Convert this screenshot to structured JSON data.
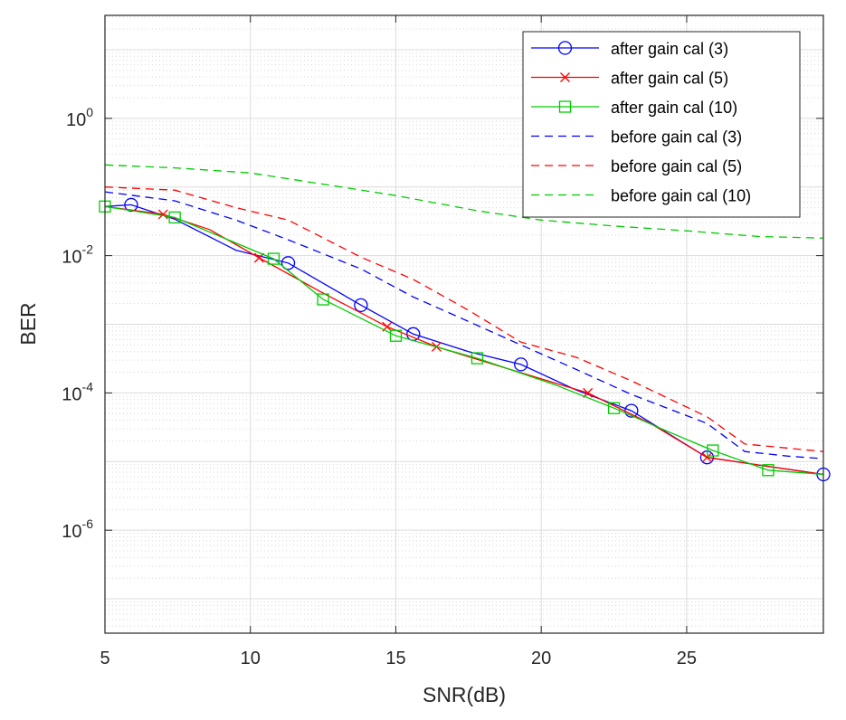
{
  "chart_data": {
    "type": "line",
    "title": "",
    "xlabel": "SNR(dB)",
    "ylabel": "BER",
    "xscale": "linear",
    "yscale": "log",
    "xlim": [
      5,
      29.7
    ],
    "ylim_exp": [
      -7.5,
      1.5
    ],
    "grid": true,
    "minor_grid": true,
    "legend_position": "top-right",
    "x_ticks": [
      {
        "value": 5,
        "label": "5"
      },
      {
        "value": 10,
        "label": "10"
      },
      {
        "value": 15,
        "label": "15"
      },
      {
        "value": 20,
        "label": "20"
      },
      {
        "value": 25,
        "label": "25"
      }
    ],
    "y_ticks": [
      {
        "exp": 0,
        "base": "10",
        "sup": "0"
      },
      {
        "exp": -2,
        "base": "10",
        "sup": "-2"
      },
      {
        "exp": -4,
        "base": "10",
        "sup": "-4"
      },
      {
        "exp": -6,
        "base": "10",
        "sup": "-6"
      }
    ],
    "series": [
      {
        "name": "after gain cal (3)",
        "color": "#0000ff",
        "line": "solid",
        "marker": "circle",
        "x": [
          5,
          5.9,
          7.4,
          9.5,
          11.3,
          13.8,
          15.6,
          17.5,
          19.3,
          21.2,
          23.1,
          25.7,
          27.8,
          29.7
        ],
        "y": [
          0.052,
          0.055,
          0.034,
          0.012,
          0.0078,
          0.0019,
          0.00072,
          0.0004,
          0.00026,
          0.00011,
          5.5e-05,
          1.15e-05,
          8.5e-06,
          6.5e-06
        ],
        "marker_x": [
          5.9,
          11.3,
          13.8,
          15.6,
          19.3,
          23.1,
          25.7,
          29.7
        ],
        "marker_y": [
          0.055,
          0.0078,
          0.0019,
          0.00072,
          0.00026,
          5.5e-05,
          1.15e-05,
          6.5e-06
        ]
      },
      {
        "name": "after gain cal (5)",
        "color": "#ff0000",
        "line": "solid",
        "marker": "x",
        "x": [
          5,
          7.0,
          8.6,
          10.3,
          12.4,
          14.7,
          16.4,
          18.5,
          21.6,
          23.8,
          25.7,
          27.8,
          29.7
        ],
        "y": [
          0.052,
          0.04,
          0.024,
          0.0093,
          0.003,
          0.00092,
          0.00047,
          0.00025,
          0.0001,
          3.5e-05,
          1.15e-05,
          8.5e-06,
          6.5e-06
        ],
        "marker_x": [
          7.0,
          10.3,
          14.7,
          16.4,
          21.6,
          25.7
        ],
        "marker_y": [
          0.04,
          0.0093,
          0.00092,
          0.00047,
          0.0001,
          1.15e-05
        ]
      },
      {
        "name": "after gain cal (10)",
        "color": "#00cc00",
        "line": "solid",
        "marker": "square",
        "x": [
          5,
          7.4,
          10.8,
          12.5,
          15.0,
          17.8,
          20.5,
          22.5,
          24.3,
          25.9,
          27.8,
          29.7
        ],
        "y": [
          0.052,
          0.036,
          0.009,
          0.0023,
          0.00068,
          0.00032,
          0.00013,
          6e-05,
          2.8e-05,
          1.45e-05,
          7.5e-06,
          6.5e-06
        ],
        "marker_x": [
          5,
          7.4,
          10.8,
          12.5,
          15.0,
          17.8,
          22.5,
          25.9,
          27.8
        ],
        "marker_y": [
          0.052,
          0.036,
          0.009,
          0.0023,
          0.00068,
          0.00032,
          6e-05,
          1.45e-05,
          7.5e-06
        ]
      },
      {
        "name": "before gain cal (3)",
        "color": "#0000ff",
        "line": "dashed",
        "marker": "none",
        "x": [
          5,
          7.4,
          9.5,
          11.3,
          13.8,
          15.6,
          17.5,
          19.3,
          21.2,
          23.1,
          25.7,
          27.0,
          28.5,
          29.7
        ],
        "y": [
          0.085,
          0.063,
          0.033,
          0.017,
          0.0064,
          0.0025,
          0.0011,
          0.0005,
          0.00022,
          9.5e-05,
          3.6e-05,
          1.4e-05,
          1.2e-05,
          1.1e-05
        ]
      },
      {
        "name": "before gain cal (5)",
        "color": "#ff0000",
        "line": "dashed",
        "marker": "none",
        "x": [
          5,
          7.4,
          9.5,
          11.3,
          13.8,
          15.6,
          17.5,
          19.3,
          21.2,
          23.1,
          25.7,
          27.0,
          29.7
        ],
        "y": [
          0.1,
          0.09,
          0.05,
          0.033,
          0.0095,
          0.0045,
          0.0016,
          0.00055,
          0.00033,
          0.00015,
          4.5e-05,
          1.8e-05,
          1.4e-05
        ]
      },
      {
        "name": "before gain cal (10)",
        "color": "#00cc00",
        "line": "dashed",
        "marker": "none",
        "x": [
          5,
          7.4,
          10.0,
          12.5,
          15.0,
          17.8,
          20.0,
          22.5,
          25.0,
          27.5,
          29.7
        ],
        "y": [
          0.21,
          0.19,
          0.16,
          0.11,
          0.075,
          0.045,
          0.033,
          0.027,
          0.023,
          0.019,
          0.018
        ]
      }
    ]
  }
}
